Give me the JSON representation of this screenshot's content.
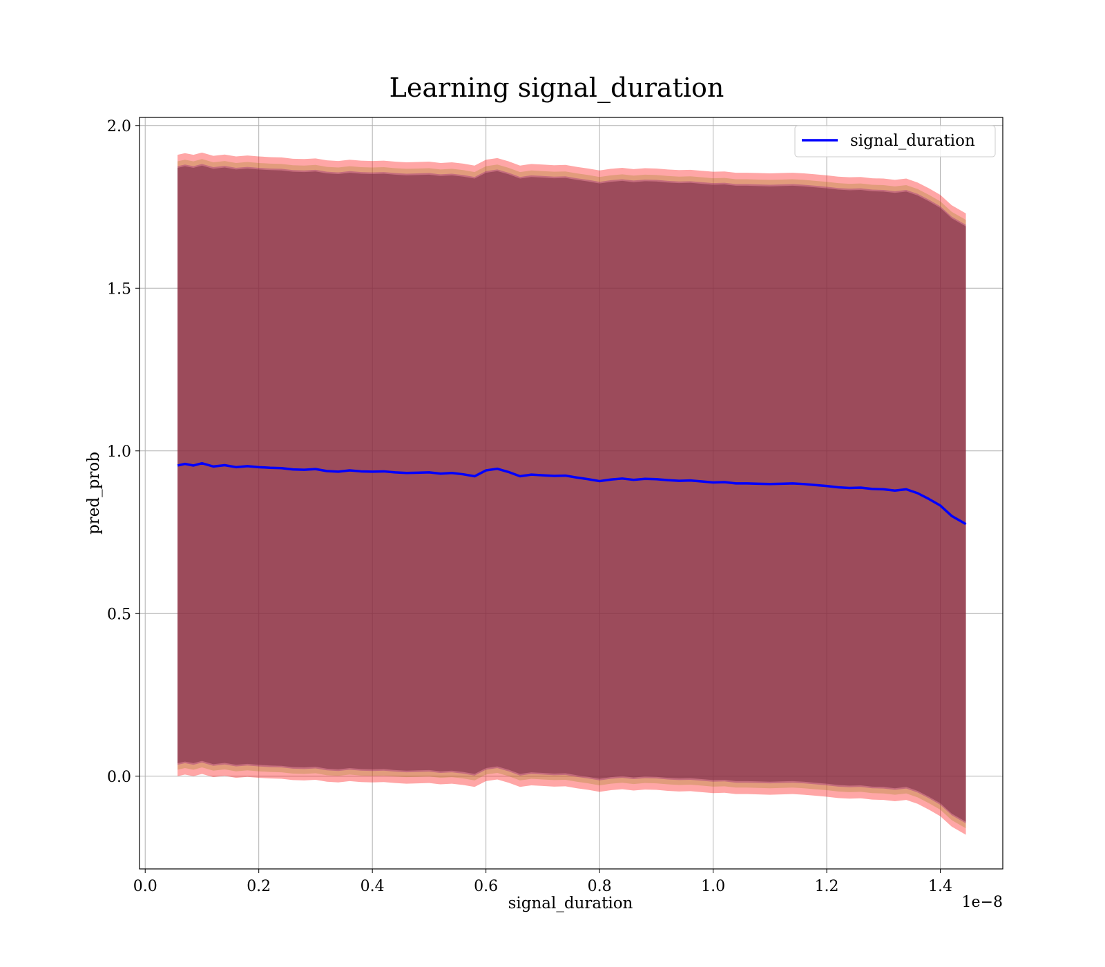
{
  "chart_data": {
    "type": "line",
    "title": "Learning signal_duration",
    "xlabel": "signal_duration",
    "ylabel": "pred_prob",
    "x_offset_label": "1e−8",
    "xlim": [
      -0.01,
      1.51
    ],
    "ylim": [
      -0.285,
      2.025
    ],
    "x_ticks": [
      0.0,
      0.2,
      0.4,
      0.6,
      0.8,
      1.0,
      1.2,
      1.4
    ],
    "x_tick_labels": [
      "0.0",
      "0.2",
      "0.4",
      "0.6",
      "0.8",
      "1.0",
      "1.2",
      "1.4"
    ],
    "y_ticks": [
      0.0,
      0.5,
      1.0,
      1.5,
      2.0
    ],
    "y_tick_labels": [
      "0.0",
      "0.5",
      "1.0",
      "1.5",
      "2.0"
    ],
    "grid": true,
    "legend_position": "top-right",
    "series": [
      {
        "name": "signal_duration",
        "color": "#0000ff",
        "x": [
          0.057,
          0.07,
          0.085,
          0.1,
          0.12,
          0.14,
          0.16,
          0.18,
          0.2,
          0.22,
          0.24,
          0.26,
          0.28,
          0.3,
          0.32,
          0.34,
          0.36,
          0.38,
          0.4,
          0.42,
          0.44,
          0.46,
          0.48,
          0.5,
          0.52,
          0.54,
          0.56,
          0.58,
          0.6,
          0.62,
          0.64,
          0.66,
          0.68,
          0.7,
          0.72,
          0.74,
          0.76,
          0.78,
          0.8,
          0.82,
          0.84,
          0.86,
          0.88,
          0.9,
          0.92,
          0.94,
          0.96,
          0.98,
          1.0,
          1.02,
          1.04,
          1.06,
          1.08,
          1.1,
          1.12,
          1.14,
          1.16,
          1.18,
          1.2,
          1.22,
          1.24,
          1.26,
          1.28,
          1.3,
          1.32,
          1.34,
          1.36,
          1.38,
          1.4,
          1.42,
          1.445
        ],
        "values": [
          0.955,
          0.96,
          0.955,
          0.962,
          0.952,
          0.956,
          0.95,
          0.953,
          0.95,
          0.948,
          0.947,
          0.943,
          0.942,
          0.944,
          0.938,
          0.936,
          0.94,
          0.937,
          0.936,
          0.937,
          0.934,
          0.932,
          0.933,
          0.934,
          0.93,
          0.932,
          0.928,
          0.922,
          0.94,
          0.945,
          0.935,
          0.922,
          0.927,
          0.925,
          0.923,
          0.924,
          0.918,
          0.913,
          0.907,
          0.912,
          0.915,
          0.911,
          0.914,
          0.913,
          0.91,
          0.908,
          0.909,
          0.906,
          0.903,
          0.904,
          0.9,
          0.9,
          0.899,
          0.898,
          0.899,
          0.9,
          0.898,
          0.895,
          0.892,
          0.888,
          0.886,
          0.887,
          0.883,
          0.882,
          0.878,
          0.882,
          0.87,
          0.852,
          0.832,
          0.8,
          0.775
        ]
      }
    ],
    "bands": [
      {
        "color": "#ff0000",
        "opacity": 0.35,
        "half_width": 0.955
      },
      {
        "color": "#8b8000",
        "opacity": 0.25,
        "half_width": 0.935
      },
      {
        "color": "#800080",
        "opacity": 0.3,
        "half_width": 0.92
      },
      {
        "color": "#7a3040",
        "opacity": 0.55,
        "half_width": 0.915
      }
    ]
  }
}
